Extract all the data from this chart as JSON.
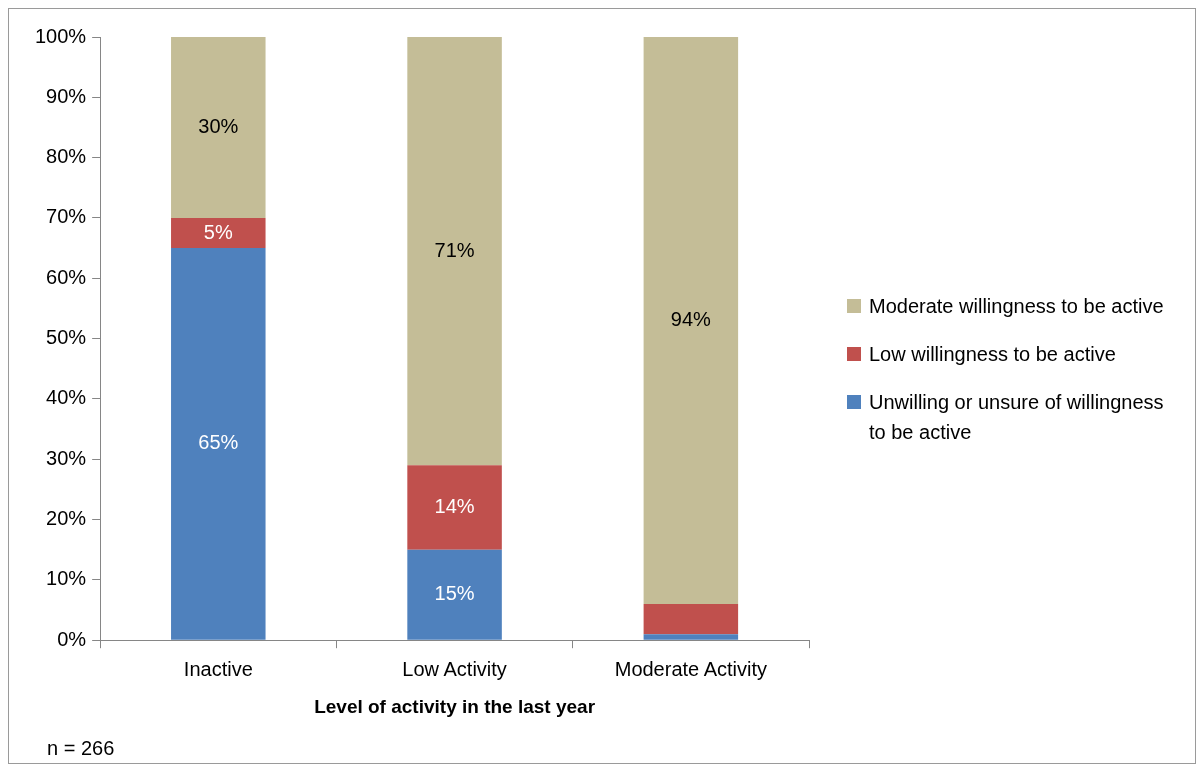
{
  "chart_data": {
    "type": "bar",
    "stacked": true,
    "xlabel": "Level of activity in the last year",
    "categories": [
      "Inactive",
      "Low Activity",
      "Moderate Activity"
    ],
    "series": [
      {
        "name": "Unwilling or unsure of willingness to be active",
        "color": "#4f81bd",
        "values": [
          65,
          15,
          1
        ],
        "value_labels": [
          "65%",
          "15%",
          null
        ]
      },
      {
        "name": "Low willingness to be active",
        "color": "#c0504d",
        "values": [
          5,
          14,
          5
        ],
        "value_labels": [
          "5%",
          "14%",
          null
        ]
      },
      {
        "name": "Moderate willingness to be active",
        "color": "#c4bd97",
        "values": [
          30,
          71,
          94
        ],
        "value_labels": [
          "30%",
          "71%",
          "94%"
        ]
      }
    ],
    "ylim": [
      0,
      100
    ],
    "yticks": [
      {
        "value": 0,
        "label": "0%"
      },
      {
        "value": 10,
        "label": "10%"
      },
      {
        "value": 20,
        "label": "20%"
      },
      {
        "value": 30,
        "label": "30%"
      },
      {
        "value": 40,
        "label": "40%"
      },
      {
        "value": 50,
        "label": "50%"
      },
      {
        "value": 60,
        "label": "60%"
      },
      {
        "value": 70,
        "label": "70%"
      },
      {
        "value": 80,
        "label": "80%"
      },
      {
        "value": 90,
        "label": "90%"
      },
      {
        "value": 100,
        "label": "100%"
      }
    ],
    "grid": false,
    "legend": "right",
    "annotations": [
      "n = 266"
    ]
  }
}
